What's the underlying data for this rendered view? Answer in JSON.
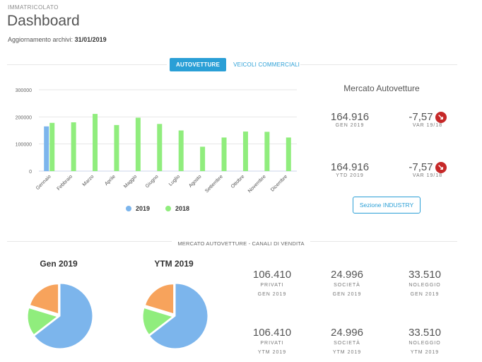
{
  "header": {
    "overline": "IMMATRICOLATO",
    "title": "Dashboard",
    "update_label": "Aggiornamento archivi:",
    "update_date": "31/01/2019"
  },
  "tabs": [
    {
      "label": "AUTOVETTURE",
      "active": true
    },
    {
      "label": "VEICOLI COMMERCIALI",
      "active": false
    }
  ],
  "chart_data": {
    "type": "bar",
    "categories": [
      "Gennaio",
      "Febbraio",
      "Marzo",
      "Aprile",
      "Maggio",
      "Giugno",
      "Luglio",
      "Agosto",
      "Settembre",
      "Ottobre",
      "Novembre",
      "Dicembre"
    ],
    "series": [
      {
        "name": "2019",
        "color": "#7cb5ec",
        "values": [
          164916,
          null,
          null,
          null,
          null,
          null,
          null,
          null,
          null,
          null,
          null,
          null
        ]
      },
      {
        "name": "2018",
        "color": "#90ed7d",
        "values": [
          178000,
          180000,
          211000,
          170000,
          197000,
          174000,
          150000,
          90000,
          124000,
          146000,
          145000,
          124000
        ]
      }
    ],
    "y_ticks": [
      "0",
      "100000",
      "200000",
      "300000"
    ],
    "ylim": [
      0,
      300000
    ],
    "grid": true,
    "legend_position": "bottom"
  },
  "market_panel": {
    "title": "Mercato Autovetture",
    "rows": [
      {
        "value": "164.916",
        "label": "GEN 2019",
        "change": "-7,57",
        "change_label": "VAR 19/18"
      },
      {
        "value": "164.916",
        "label": "YTD 2019",
        "change": "-7,57",
        "change_label": "VAR 19/18"
      }
    ],
    "button": "Sezione INDUSTRY",
    "arrow_icon": "arrow-down-right-icon",
    "negative_color": "#c62828"
  },
  "channels": {
    "section_label": "MERCATO AUTOVETTURE - CANALI DI VENDITA",
    "pies": [
      {
        "title": "Gen 2019",
        "slices": [
          {
            "value": 106410,
            "color": "#7cb5ec"
          },
          {
            "value": 24996,
            "color": "#90ed7d"
          },
          {
            "value": 33510,
            "color": "#f7a35c"
          }
        ]
      },
      {
        "title": "YTM 2019",
        "slices": [
          {
            "value": 106410,
            "color": "#7cb5ec"
          },
          {
            "value": 24996,
            "color": "#90ed7d"
          },
          {
            "value": 33510,
            "color": "#f7a35c"
          }
        ]
      }
    ],
    "stats_row1": [
      {
        "value": "106.410",
        "line1": "PRIVATI",
        "line2": "GEN 2019"
      },
      {
        "value": "24.996",
        "line1": "SOCIETÀ",
        "line2": "GEN 2019"
      },
      {
        "value": "33.510",
        "line1": "NOLEGGIO",
        "line2": "GEN 2019"
      }
    ],
    "stats_row2": [
      {
        "value": "106.410",
        "line1": "PRIVATI",
        "line2": "YTM 2019"
      },
      {
        "value": "24.996",
        "line1": "SOCIETÀ",
        "line2": "YTM 2019"
      },
      {
        "value": "33.510",
        "line1": "NOLEGGIO",
        "line2": "YTM 2019"
      }
    ]
  }
}
